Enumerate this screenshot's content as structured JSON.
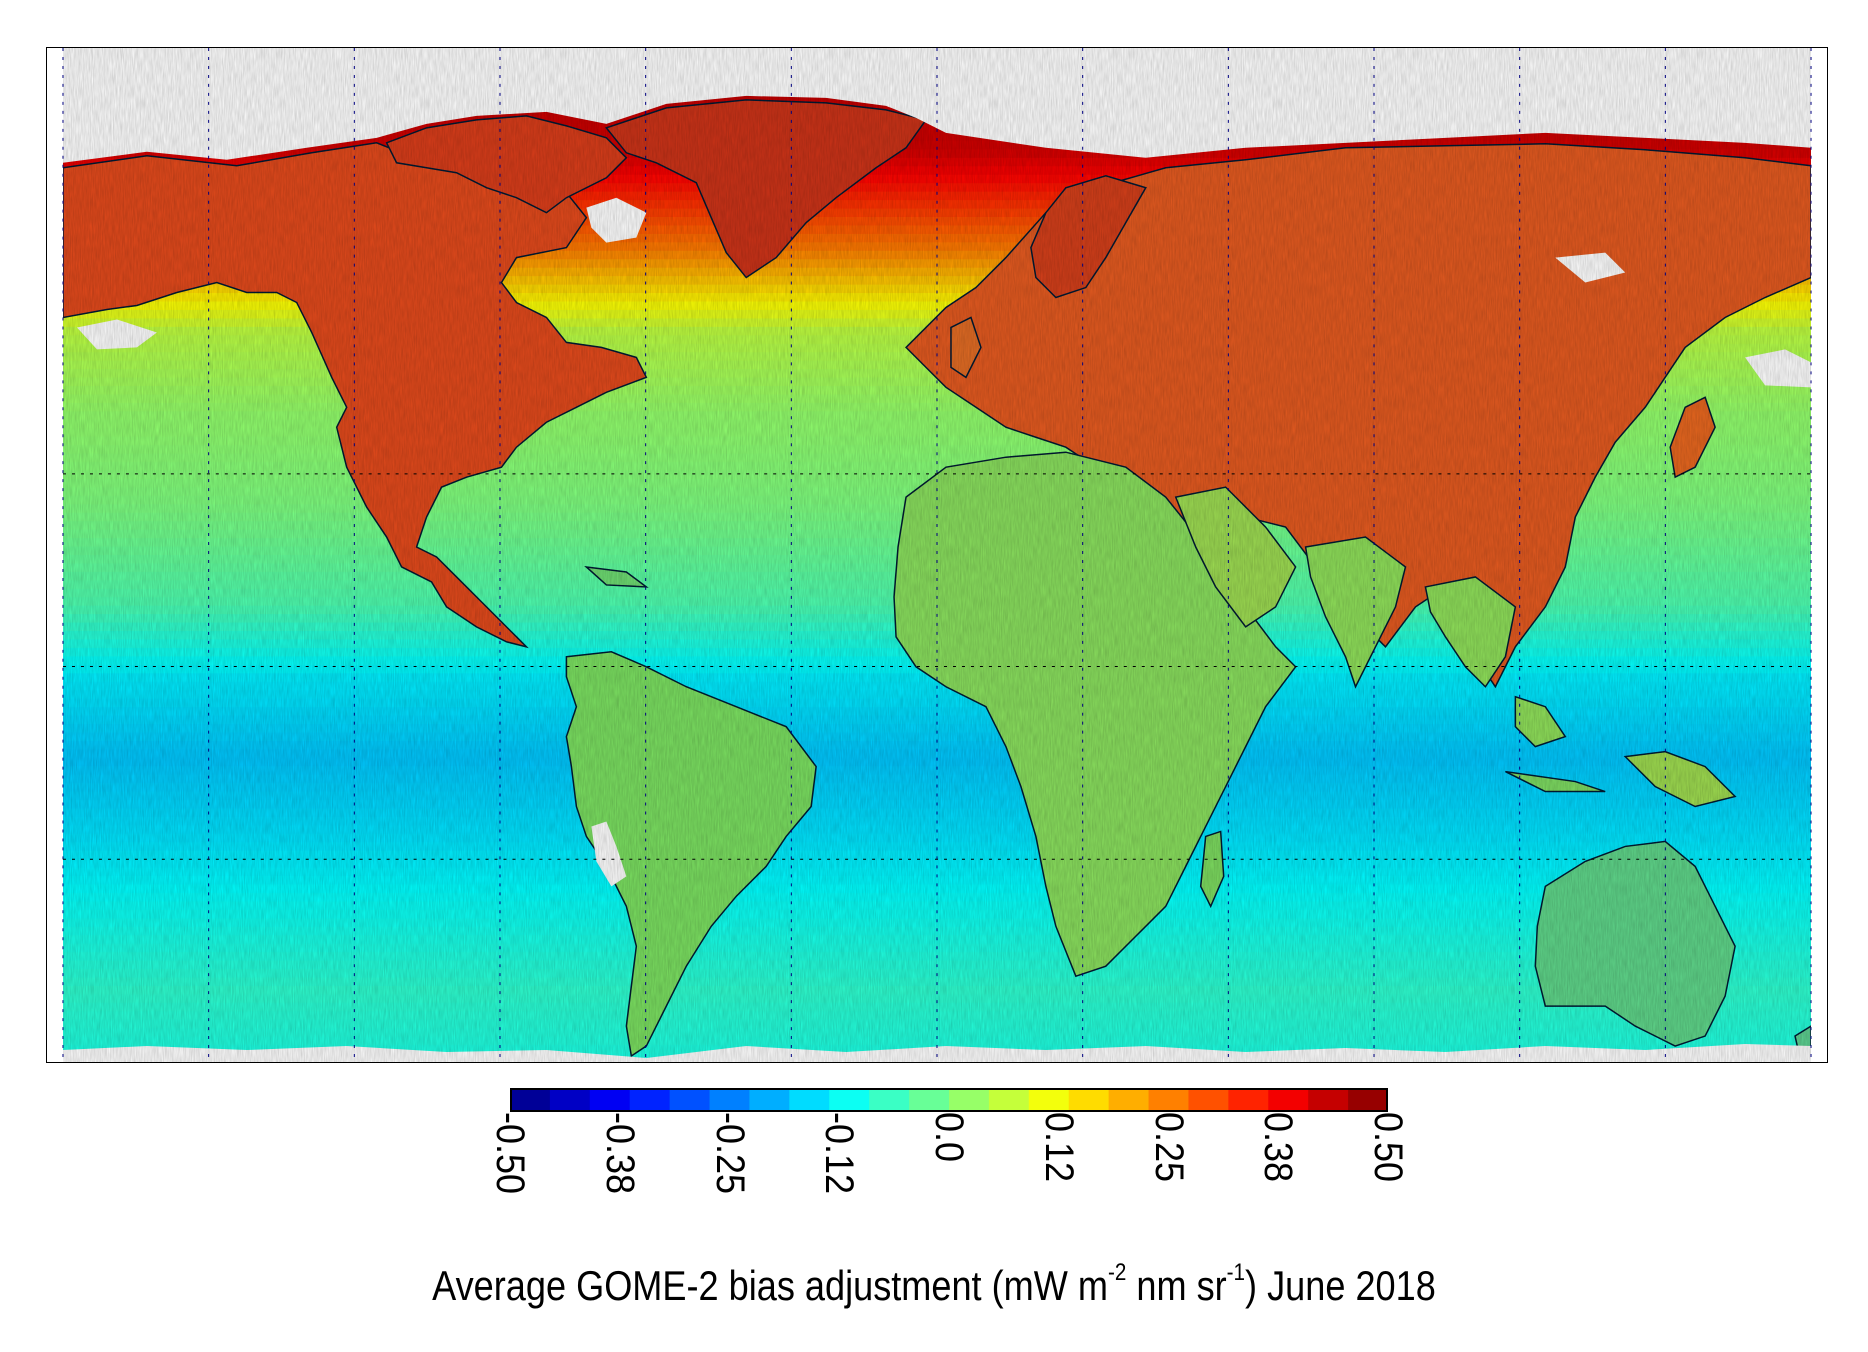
{
  "map": {
    "projection": "equirectangular",
    "lon_range": [
      -180,
      180
    ],
    "lat_range": [
      -90,
      90
    ],
    "grid_dashed": true,
    "grid_color": "#000080",
    "coastline_color": "#000033",
    "missing_color": "#ffffff"
  },
  "colorbar": {
    "ticks": [
      "-0.50",
      "-0.38",
      "-0.25",
      "-0.12",
      "0.0",
      "0.12",
      "0.25",
      "0.38",
      "0.50"
    ],
    "range": [
      -0.5,
      0.5
    ],
    "colormap": "jet",
    "tick_orientation": "rotated-90-clockwise"
  },
  "caption": {
    "pre": "Average GOME-2 bias adjustment (mW m",
    "sup1": "-2",
    "mid": " nm sr",
    "sup2": "-1",
    "post": ") June 2018"
  }
}
